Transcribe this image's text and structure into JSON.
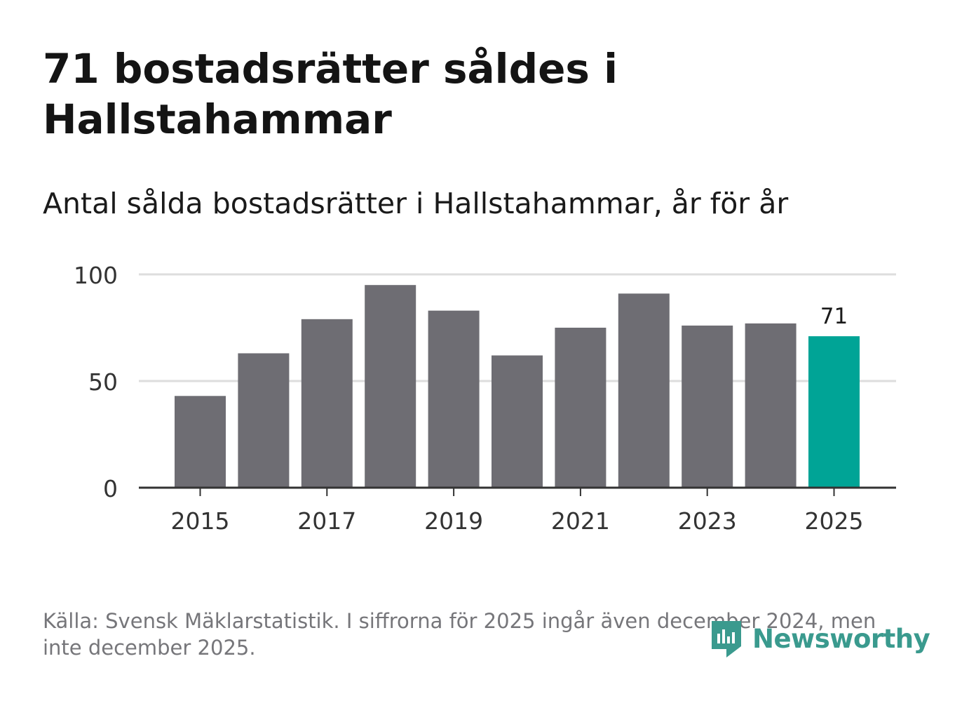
{
  "header": {
    "title": "71 bostadsrätter såldes i Hallstahammar",
    "subtitle": "Antal sålda bostadsrätter i Hallstahammar, år för år"
  },
  "footer": {
    "source": "Källa: Svensk Mäklarstatistik. I siffrorna för 2025 ingår även december 2024, men inte december 2025."
  },
  "brand": {
    "name": "Newsworthy",
    "logo_icon": "newsworthy-logo-icon"
  },
  "colors": {
    "bar": "#6e6d73",
    "highlight": "#00a496",
    "grid": "#dddddd",
    "axis": "#333333",
    "text": "#333333",
    "brand": "#3a9a8e"
  },
  "chart_data": {
    "type": "bar",
    "title": "Antal sålda bostadsrätter i Hallstahammar, år för år",
    "categories": [
      "2015",
      "2016",
      "2017",
      "2018",
      "2019",
      "2020",
      "2021",
      "2022",
      "2023",
      "2024",
      "2025"
    ],
    "values": [
      43,
      63,
      79,
      95,
      83,
      62,
      75,
      91,
      76,
      77,
      71
    ],
    "highlight_index": 10,
    "highlight_label": "71",
    "xticks": [
      "2015",
      "2017",
      "2019",
      "2021",
      "2023",
      "2025"
    ],
    "yticks": [
      0,
      50,
      100
    ],
    "ylim": [
      0,
      100
    ],
    "xlabel": "",
    "ylabel": "",
    "grid": true
  }
}
